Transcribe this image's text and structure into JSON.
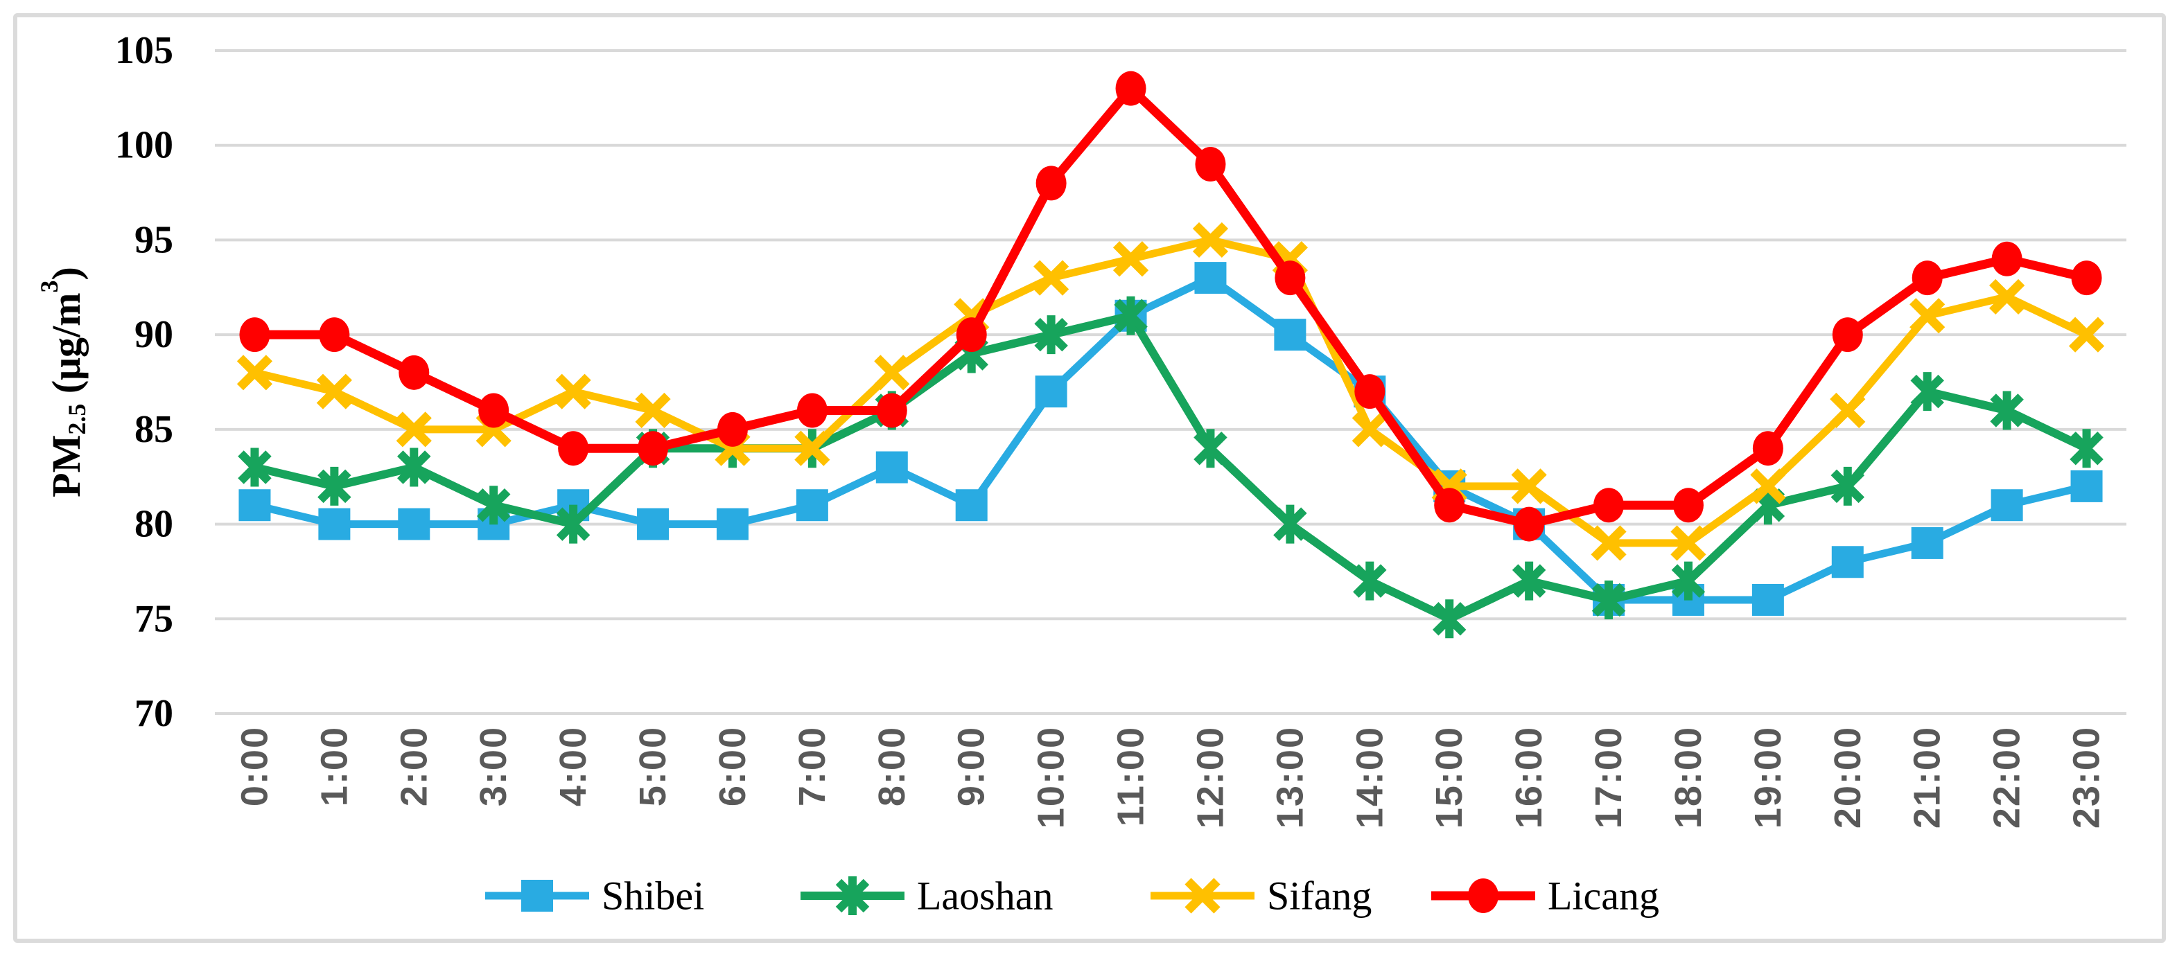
{
  "chart_data": {
    "type": "line",
    "title": "",
    "xlabel": "",
    "ylabel": "PM2.5 (μg/m3)",
    "ylabel_rich": {
      "prefix": "PM",
      "subscript": "2.5",
      "middle": " (μg/m",
      "superscript": "3",
      "suffix": ")"
    },
    "categories": [
      "0:00",
      "1:00",
      "2:00",
      "3:00",
      "4:00",
      "5:00",
      "6:00",
      "7:00",
      "8:00",
      "9:00",
      "10:00",
      "11:00",
      "12:00",
      "13:00",
      "14:00",
      "15:00",
      "16:00",
      "17:00",
      "18:00",
      "19:00",
      "20:00",
      "21:00",
      "22:00",
      "23:00"
    ],
    "series": [
      {
        "name": "Shibei",
        "color": "#29ABE2",
        "marker": "square",
        "line_width": 11,
        "values": [
          81,
          80,
          80,
          80,
          81,
          80,
          80,
          81,
          83,
          81,
          87,
          91,
          93,
          90,
          87,
          82,
          80,
          76,
          76,
          76,
          78,
          79,
          81,
          82
        ]
      },
      {
        "name": "Laoshan",
        "color": "#17A45C",
        "marker": "asterisk",
        "line_width": 12,
        "values": [
          83,
          82,
          83,
          81,
          80,
          84,
          84,
          84,
          86,
          89,
          90,
          91,
          84,
          80,
          77,
          75,
          77,
          76,
          77,
          81,
          82,
          87,
          86,
          84
        ]
      },
      {
        "name": "Sifang",
        "color": "#FFC000",
        "marker": "x",
        "line_width": 11,
        "values": [
          88,
          87,
          85,
          85,
          87,
          86,
          84,
          84,
          88,
          91,
          93,
          94,
          95,
          94,
          85,
          82,
          82,
          79,
          79,
          82,
          86,
          91,
          92,
          90
        ]
      },
      {
        "name": "Licang",
        "color": "#FF0000",
        "marker": "circle",
        "line_width": 13,
        "values": [
          90,
          90,
          88,
          86,
          84,
          84,
          85,
          86,
          86,
          90,
          98,
          103,
          99,
          93,
          87,
          81,
          80,
          81,
          81,
          84,
          90,
          93,
          94,
          93
        ]
      }
    ],
    "ylim": [
      70,
      105
    ],
    "ytick_interval": 5,
    "yticks": [
      "70",
      "75",
      "80",
      "85",
      "90",
      "95",
      "100",
      "105"
    ],
    "grid": "horizontal",
    "legend_position": "bottom",
    "legend": [
      "Shibei",
      "Laoshan",
      "Sifang",
      "Licang"
    ],
    "colors": {
      "gridline": "#D9D9D9",
      "chart_border": "#DBDBDB",
      "x_tick_label": "#595959",
      "y_tick_label": "#000000",
      "y_axis_title": "#000000",
      "legend_text": "#000000",
      "background": "#FFFFFF"
    }
  }
}
